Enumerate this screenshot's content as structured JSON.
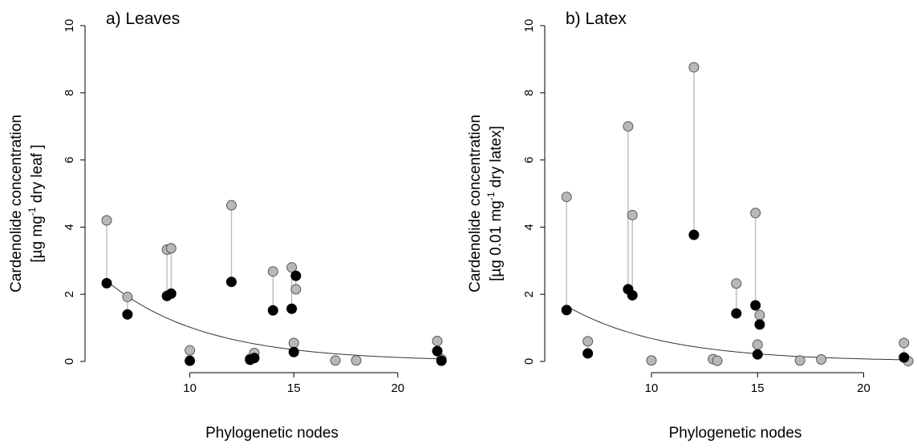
{
  "chart_data": [
    {
      "type": "scatter",
      "title": "a) Leaves",
      "xlabel": "Phylogenetic nodes",
      "ylabel_line1": "Cardenolide concentration",
      "ylabel_line2_prefix": "[µg mg",
      "ylabel_line2_sup": "-1",
      "ylabel_line2_suffix": " dry leaf ]",
      "xlim": [
        5.5,
        22.4
      ],
      "ylim": [
        0,
        10
      ],
      "xticks": [
        10,
        15,
        20
      ],
      "yticks": [
        0,
        2,
        4,
        6,
        8,
        10
      ],
      "fit_curve": {
        "a": 2.4,
        "b": 0.214,
        "x0": 6,
        "x_start": 6,
        "x_end": 22
      },
      "points": [
        {
          "x": 6,
          "grey": 4.2,
          "black": 2.33
        },
        {
          "x": 7,
          "grey": 1.92,
          "black": 1.4
        },
        {
          "x": 8.9,
          "grey": 3.33,
          "black": 1.95
        },
        {
          "x": 9.1,
          "grey": 3.37,
          "black": 2.02
        },
        {
          "x": 10,
          "grey": 0.33,
          "black": 0.02
        },
        {
          "x": 12,
          "grey": 4.65,
          "black": 2.37
        },
        {
          "x": 12.9,
          "grey": 0.08,
          "black": 0.05
        },
        {
          "x": 13.1,
          "grey": 0.25,
          "black": 0.1
        },
        {
          "x": 14,
          "grey": 2.68,
          "black": 1.52
        },
        {
          "x": 14.9,
          "grey": 2.8,
          "black": 1.57
        },
        {
          "x": 15,
          "grey": 0.55,
          "black": 0.28
        },
        {
          "x": 15.1,
          "grey": 2.15,
          "black": 2.55
        },
        {
          "x": 17,
          "grey": 0.03,
          "black": null
        },
        {
          "x": 18,
          "grey": 0.03,
          "black": null
        },
        {
          "x": 21.9,
          "grey": 0.61,
          "black": 0.31
        },
        {
          "x": 22.1,
          "grey": 0.07,
          "black": 0.02
        }
      ]
    },
    {
      "type": "scatter",
      "title": "b) Latex",
      "xlabel": "Phylogenetic nodes",
      "ylabel_line1": "Cardenolide concentration",
      "ylabel_line2_prefix": "[µg 0.01 mg",
      "ylabel_line2_sup": "-1",
      "ylabel_line2_suffix": " dry latex]",
      "xlim": [
        5.5,
        22.4
      ],
      "ylim": [
        0,
        10
      ],
      "xticks": [
        10,
        15,
        20
      ],
      "yticks": [
        0,
        2,
        4,
        6,
        8,
        10
      ],
      "fit_curve": {
        "a": 1.65,
        "b": 0.22,
        "x0": 6,
        "x_start": 6,
        "x_end": 22
      },
      "points": [
        {
          "x": 6,
          "grey": 4.9,
          "black": 1.53
        },
        {
          "x": 7,
          "grey": 0.6,
          "black": 0.24
        },
        {
          "x": 8.9,
          "grey": 7.0,
          "black": 2.15
        },
        {
          "x": 9.1,
          "grey": 4.36,
          "black": 1.97
        },
        {
          "x": 10,
          "grey": 0.03,
          "black": null
        },
        {
          "x": 12,
          "grey": 8.76,
          "black": 3.77
        },
        {
          "x": 12.9,
          "grey": 0.07,
          "black": null
        },
        {
          "x": 13.1,
          "grey": 0.02,
          "black": null
        },
        {
          "x": 14,
          "grey": 2.32,
          "black": 1.43
        },
        {
          "x": 14.9,
          "grey": 4.42,
          "black": 1.67
        },
        {
          "x": 15,
          "grey": 0.5,
          "black": 0.21
        },
        {
          "x": 15.1,
          "grey": 1.38,
          "black": 1.1
        },
        {
          "x": 17,
          "grey": 0.03,
          "black": null
        },
        {
          "x": 18,
          "grey": 0.06,
          "black": null
        },
        {
          "x": 21.9,
          "grey": 0.55,
          "black": 0.12
        },
        {
          "x": 22.1,
          "grey": 0.01,
          "black": null
        }
      ]
    }
  ],
  "colors": {
    "grey_point": "#b8b8b8",
    "black_point": "#000000",
    "stem": "#bdbdbd",
    "fit_line": "#333333"
  }
}
